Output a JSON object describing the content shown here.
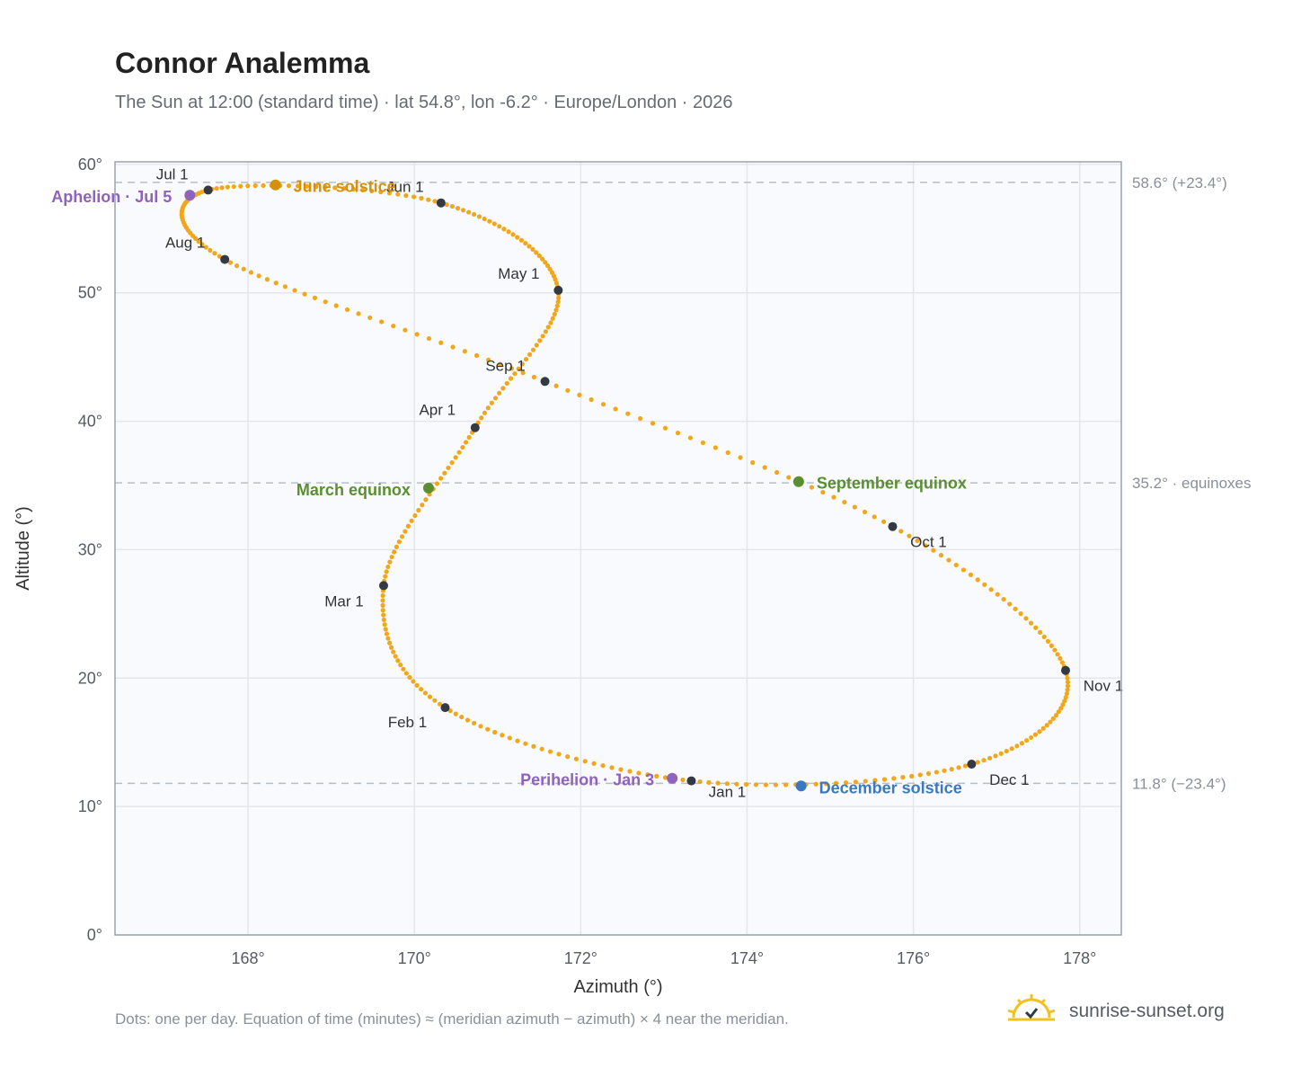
{
  "header": {
    "title": "Connor Analemma",
    "subtitle": "The Sun at 12:00 (standard time) · lat 54.8°, lon -6.2° · Europe/London · 2026"
  },
  "footer": {
    "note": "Dots: one per day. Equation of time (minutes) ≈ (meridian azimuth − azimuth) × 4 near the meridian.",
    "brand": "sunrise-sunset.org",
    "brand_icon": "sun-logo-icon"
  },
  "colors": {
    "curve": "#f2a71b",
    "plot_bg": "#f8fafd",
    "month_dot": "#333a44",
    "june": "#d4910a",
    "equinox": "#5a8f2f",
    "december": "#3a78c2",
    "apsis": "#8e62bd",
    "ref_line": "#b8bfc8"
  },
  "chart_data": {
    "type": "scatter",
    "xlabel": "Azimuth (°)",
    "ylabel": "Altitude (°)",
    "xlim": [
      166.4,
      178.5
    ],
    "ylim": [
      0,
      60.2
    ],
    "xticks": [
      168,
      170,
      172,
      174,
      176,
      178
    ],
    "yticks": [
      0,
      10,
      20,
      30,
      40,
      50,
      60
    ],
    "x_tick_labels": [
      "168°",
      "170°",
      "172°",
      "174°",
      "176°",
      "178°"
    ],
    "y_tick_labels": [
      "0°",
      "10°",
      "20°",
      "30°",
      "40°",
      "50°",
      "60°"
    ],
    "grid": true,
    "series": [
      {
        "name": "",
        "marker": "dot",
        "note": "one point per day; points below are key points the daily series follows",
        "points": [
          {
            "date": "Jan 1",
            "x": 173.33,
            "y": 12.0
          },
          {
            "date": "Feb 1",
            "x": 170.37,
            "y": 17.7
          },
          {
            "date": "Mar 1",
            "x": 169.63,
            "y": 27.2
          },
          {
            "date": "Apr 1",
            "x": 170.73,
            "y": 39.5
          },
          {
            "date": "May 1",
            "x": 171.73,
            "y": 50.2
          },
          {
            "date": "Jun 1",
            "x": 170.32,
            "y": 57.0
          },
          {
            "date": "Jul 1",
            "x": 167.52,
            "y": 58.0
          },
          {
            "date": "Aug 1",
            "x": 167.72,
            "y": 52.6
          },
          {
            "date": "Sep 1",
            "x": 171.57,
            "y": 43.1
          },
          {
            "date": "Oct 1",
            "x": 175.75,
            "y": 31.8
          },
          {
            "date": "Nov 1",
            "x": 177.83,
            "y": 20.6
          },
          {
            "date": "Dec 1",
            "x": 176.7,
            "y": 13.3
          }
        ]
      }
    ],
    "month_labels": [
      "Jan 1",
      "Feb 1",
      "Mar 1",
      "Apr 1",
      "May 1",
      "Jun 1",
      "Jul 1",
      "Aug 1",
      "Sep 1",
      "Oct 1",
      "Nov 1",
      "Dec 1"
    ],
    "events": [
      {
        "label": "June solstice",
        "x": 168.33,
        "y": 58.4,
        "color": "june"
      },
      {
        "label": "March equinox",
        "x": 170.17,
        "y": 34.8,
        "color": "equinox"
      },
      {
        "label": "September equinox",
        "x": 174.62,
        "y": 35.3,
        "color": "equinox"
      },
      {
        "label": "December solstice",
        "x": 174.65,
        "y": 11.6,
        "color": "december"
      },
      {
        "label": "Aphelion · Jul 5",
        "x": 167.3,
        "y": 57.6,
        "color": "apsis"
      },
      {
        "label": "Perihelion · Jan 3",
        "x": 173.1,
        "y": 12.2,
        "color": "apsis"
      }
    ],
    "reference_lines": [
      {
        "y": 58.6,
        "label": "58.6° (+23.4°)"
      },
      {
        "y": 35.2,
        "label": "35.2° · equinoxes"
      },
      {
        "y": 11.8,
        "label": "11.8° (−23.4°)"
      }
    ]
  }
}
